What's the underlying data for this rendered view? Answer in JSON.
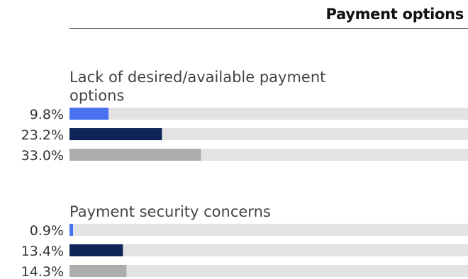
{
  "header": {
    "title": "Payment options"
  },
  "chart_data": {
    "type": "bar",
    "orientation": "horizontal",
    "title": "Payment options",
    "xlim": [
      0,
      100
    ],
    "grid": false,
    "groups": [
      {
        "label_lines": [
          "Lack of desired/available payment",
          "options"
        ],
        "values": [
          9.8,
          23.2,
          33.0
        ],
        "labels": [
          "9.8%",
          "23.2%",
          "33.0%"
        ]
      },
      {
        "label_lines": [
          "Payment security concerns"
        ],
        "values": [
          0.9,
          13.4,
          14.3
        ],
        "labels": [
          "0.9%",
          "13.4%",
          "14.3%"
        ]
      }
    ],
    "bar_colors": [
      "#4a72f0",
      "#0f2557",
      "#adadad"
    ],
    "track_color": "#e3e3e3"
  }
}
